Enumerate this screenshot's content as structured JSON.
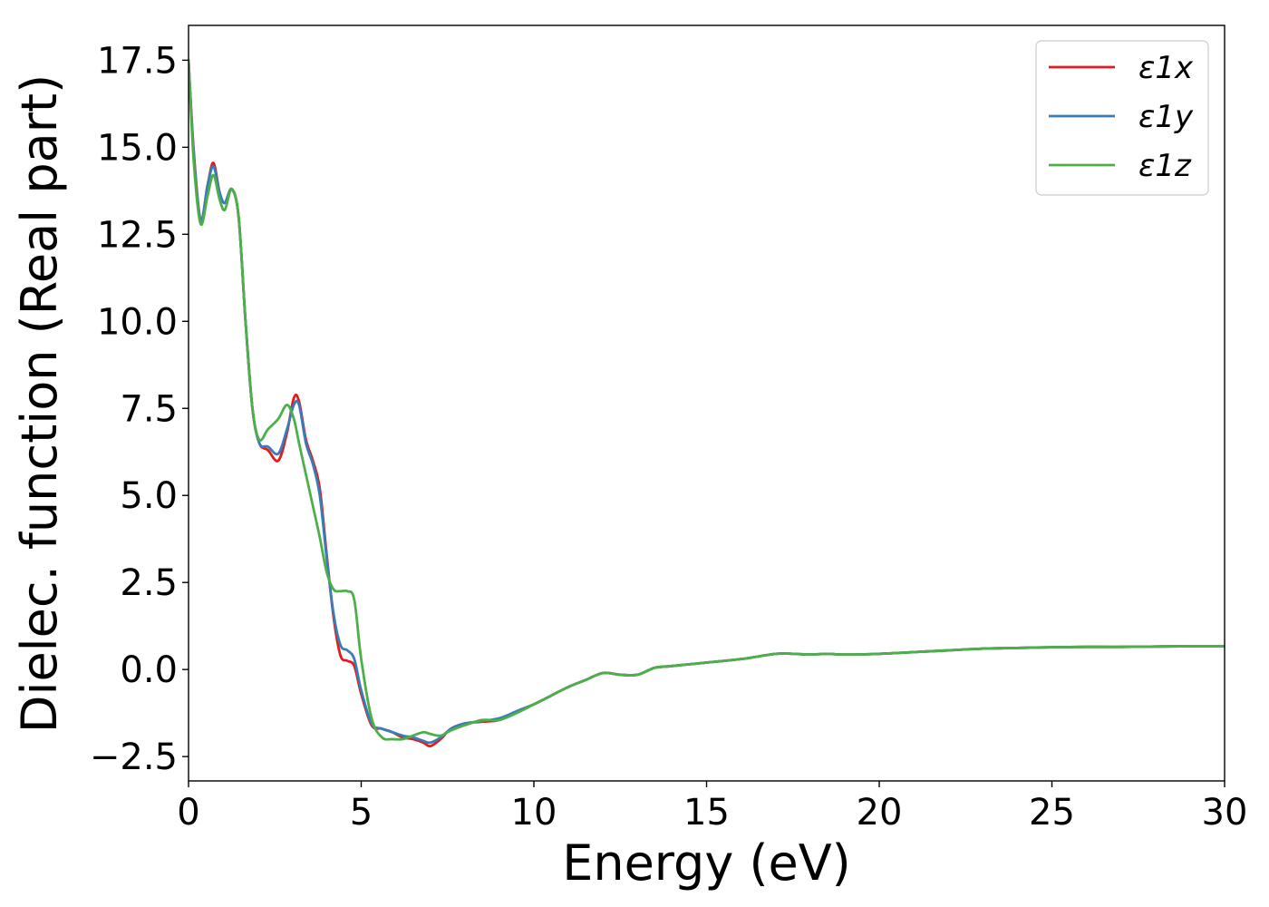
{
  "chart_data": {
    "type": "line",
    "xlabel": "Energy (eV)",
    "ylabel": "Dielec. function (Real part)",
    "xlim": [
      0,
      30
    ],
    "ylim": [
      -3.2,
      18.5
    ],
    "xticks": [
      0,
      5,
      10,
      15,
      20,
      25,
      30
    ],
    "xtick_labels": [
      "0",
      "5",
      "10",
      "15",
      "20",
      "25",
      "30"
    ],
    "yticks": [
      -2.5,
      0.0,
      2.5,
      5.0,
      7.5,
      10.0,
      12.5,
      15.0,
      17.5
    ],
    "ytick_labels": [
      "−2.5",
      "0.0",
      "2.5",
      "5.0",
      "7.5",
      "10.0",
      "12.5",
      "15.0",
      "17.5"
    ],
    "grid": false,
    "legend_position": "top-right",
    "series": [
      {
        "name": "ε1x",
        "color": "#e41a1c",
        "x": [
          0,
          0.15,
          0.35,
          0.55,
          0.72,
          0.9,
          1.05,
          1.25,
          1.45,
          1.65,
          1.85,
          2.05,
          2.3,
          2.6,
          2.85,
          3.05,
          3.2,
          3.4,
          3.6,
          3.8,
          4.0,
          4.2,
          4.4,
          4.6,
          4.8,
          5.0,
          5.3,
          5.6,
          5.9,
          6.2,
          6.5,
          6.8,
          7.0,
          7.3,
          7.6,
          8.0,
          8.5,
          9.0,
          9.5,
          10.0,
          10.5,
          11.0,
          11.5,
          12.0,
          12.5,
          13.0,
          13.5,
          14.0,
          15.0,
          16.0,
          17.0,
          17.5,
          18.0,
          18.5,
          19.0,
          20.0,
          21.0,
          22.0,
          23.0,
          24.0,
          25.0,
          26.0,
          27.0,
          28.0,
          29.0,
          30.0
        ],
        "y": [
          17.5,
          14.9,
          12.9,
          13.9,
          14.55,
          13.7,
          13.4,
          13.8,
          13.0,
          10.0,
          7.5,
          6.5,
          6.3,
          6.0,
          6.8,
          7.8,
          7.7,
          6.6,
          6.0,
          5.2,
          3.3,
          1.5,
          0.4,
          0.25,
          0.1,
          -0.7,
          -1.6,
          -1.7,
          -1.8,
          -1.95,
          -2.0,
          -2.1,
          -2.2,
          -2.0,
          -1.7,
          -1.55,
          -1.5,
          -1.45,
          -1.2,
          -1.0,
          -0.75,
          -0.5,
          -0.3,
          -0.1,
          -0.15,
          -0.15,
          0.05,
          0.1,
          0.2,
          0.3,
          0.45,
          0.45,
          0.43,
          0.45,
          0.43,
          0.45,
          0.5,
          0.55,
          0.6,
          0.62,
          0.64,
          0.65,
          0.65,
          0.66,
          0.67,
          0.67
        ]
      },
      {
        "name": "ε1y",
        "color": "#377eb8",
        "x": [
          0,
          0.15,
          0.35,
          0.55,
          0.72,
          0.9,
          1.05,
          1.25,
          1.45,
          1.65,
          1.85,
          2.05,
          2.3,
          2.6,
          2.85,
          3.05,
          3.2,
          3.4,
          3.6,
          3.8,
          4.0,
          4.2,
          4.4,
          4.6,
          4.8,
          5.0,
          5.3,
          5.6,
          5.9,
          6.2,
          6.5,
          6.8,
          7.0,
          7.3,
          7.6,
          8.0,
          8.5,
          9.0,
          9.5,
          10.0,
          10.5,
          11.0,
          11.5,
          12.0,
          12.5,
          13.0,
          13.5,
          14.0,
          15.0,
          16.0,
          17.0,
          17.5,
          18.0,
          18.5,
          19.0,
          20.0,
          21.0,
          22.0,
          23.0,
          24.0,
          25.0,
          26.0,
          27.0,
          28.0,
          29.0,
          30.0
        ],
        "y": [
          17.5,
          14.8,
          12.9,
          13.9,
          14.45,
          13.7,
          13.4,
          13.8,
          13.0,
          10.0,
          7.5,
          6.5,
          6.4,
          6.2,
          6.9,
          7.6,
          7.6,
          6.5,
          5.9,
          5.0,
          3.2,
          1.6,
          0.7,
          0.55,
          0.3,
          -0.6,
          -1.55,
          -1.7,
          -1.8,
          -1.9,
          -1.95,
          -2.05,
          -2.1,
          -1.95,
          -1.7,
          -1.55,
          -1.48,
          -1.4,
          -1.2,
          -1.0,
          -0.75,
          -0.5,
          -0.3,
          -0.1,
          -0.15,
          -0.15,
          0.05,
          0.1,
          0.2,
          0.3,
          0.45,
          0.45,
          0.43,
          0.45,
          0.43,
          0.45,
          0.5,
          0.55,
          0.6,
          0.62,
          0.64,
          0.65,
          0.65,
          0.66,
          0.67,
          0.67
        ]
      },
      {
        "name": "ε1z",
        "color": "#4daf4a",
        "x": [
          0,
          0.15,
          0.35,
          0.55,
          0.72,
          0.9,
          1.05,
          1.25,
          1.45,
          1.65,
          1.85,
          2.05,
          2.3,
          2.6,
          2.85,
          3.05,
          3.2,
          3.4,
          3.6,
          3.8,
          4.0,
          4.2,
          4.4,
          4.6,
          4.8,
          5.0,
          5.3,
          5.6,
          5.9,
          6.2,
          6.5,
          6.8,
          7.0,
          7.3,
          7.6,
          8.0,
          8.5,
          9.0,
          9.5,
          10.0,
          10.5,
          11.0,
          11.5,
          12.0,
          12.5,
          13.0,
          13.5,
          14.0,
          15.0,
          16.0,
          17.0,
          17.5,
          18.0,
          18.5,
          19.0,
          20.0,
          21.0,
          22.0,
          23.0,
          24.0,
          25.0,
          26.0,
          27.0,
          28.0,
          29.0,
          30.0
        ],
        "y": [
          17.5,
          14.6,
          12.8,
          13.6,
          14.2,
          13.5,
          13.2,
          13.8,
          13.0,
          10.0,
          7.5,
          6.6,
          6.9,
          7.2,
          7.6,
          7.2,
          6.5,
          5.6,
          4.7,
          3.8,
          2.8,
          2.3,
          2.25,
          2.25,
          2.0,
          0.3,
          -1.4,
          -1.95,
          -2.0,
          -2.0,
          -1.9,
          -1.8,
          -1.85,
          -1.9,
          -1.75,
          -1.6,
          -1.45,
          -1.45,
          -1.25,
          -1.0,
          -0.75,
          -0.5,
          -0.3,
          -0.1,
          -0.15,
          -0.15,
          0.05,
          0.1,
          0.2,
          0.3,
          0.45,
          0.45,
          0.43,
          0.45,
          0.43,
          0.45,
          0.5,
          0.55,
          0.6,
          0.62,
          0.64,
          0.65,
          0.65,
          0.66,
          0.67,
          0.67
        ]
      }
    ]
  }
}
